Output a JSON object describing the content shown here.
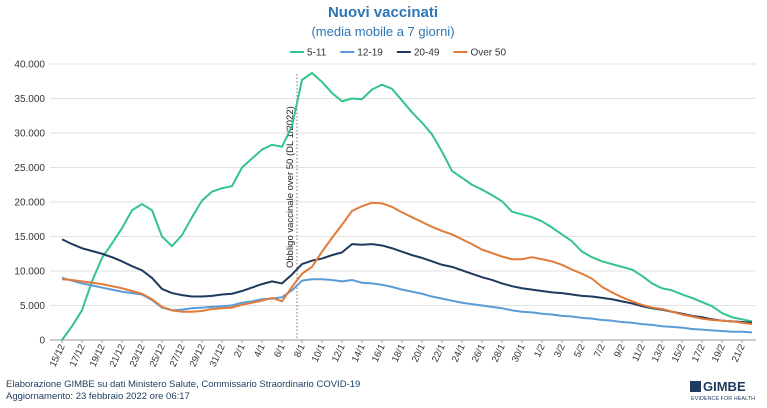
{
  "chart_data": {
    "type": "line",
    "title": "Nuovi vaccinati",
    "subtitle": "(media mobile a 7 giorni)",
    "categories": [
      "15/12",
      null,
      "17/12",
      null,
      "19/12",
      null,
      "21/12",
      null,
      "23/12",
      null,
      "25/12",
      null,
      "27/12",
      null,
      "29/12",
      null,
      "31/12",
      null,
      "2/1",
      null,
      "4/1",
      null,
      "6/1",
      null,
      "8/1",
      null,
      "10/1",
      null,
      "12/1",
      null,
      "14/1",
      null,
      "16/1",
      null,
      "18/1",
      null,
      "20/1",
      null,
      "22/1",
      null,
      "24/1",
      null,
      "26/1",
      null,
      "28/1",
      null,
      "30/1",
      null,
      "1/2",
      null,
      "3/2",
      null,
      "5/2",
      null,
      "7/2",
      null,
      "9/2",
      null,
      "11/2",
      null,
      "13/2",
      null,
      "15/2",
      null,
      "17/2",
      null,
      "19/2",
      null,
      "21/2",
      null
    ],
    "series": [
      {
        "name": "5-11",
        "color": "#33c48a",
        "values": [
          0,
          2000,
          4300,
          8500,
          11900,
          14000,
          16200,
          18800,
          19700,
          18800,
          15000,
          13600,
          15200,
          17800,
          20200,
          21500,
          22000,
          22300,
          25000,
          26300,
          27600,
          28300,
          28000,
          31000,
          37700,
          38700,
          37400,
          35800,
          34600,
          35000,
          34900,
          36300,
          37000,
          36400,
          34700,
          33000,
          31500,
          29800,
          27300,
          24500,
          23500,
          22500,
          21800,
          21000,
          20100,
          18600,
          18200,
          17800,
          17200,
          16300,
          15300,
          14300,
          12800,
          12000,
          11400,
          11000,
          10600,
          10200,
          9300,
          8200,
          7500,
          7200,
          6600,
          6100,
          5500,
          4900,
          3900,
          3300,
          3000,
          2700
        ]
      },
      {
        "name": "12-19",
        "color": "#5b9bd5",
        "values": [
          9000,
          8600,
          8200,
          7900,
          7600,
          7300,
          7000,
          6800,
          6600,
          5800,
          4700,
          4300,
          4400,
          4600,
          4700,
          4800,
          4900,
          5000,
          5400,
          5600,
          5900,
          6000,
          6200,
          7200,
          8600,
          8800,
          8800,
          8700,
          8500,
          8700,
          8300,
          8200,
          8000,
          7700,
          7300,
          7000,
          6700,
          6300,
          6000,
          5700,
          5400,
          5200,
          5000,
          4800,
          4600,
          4300,
          4100,
          4000,
          3800,
          3700,
          3500,
          3400,
          3200,
          3100,
          2900,
          2800,
          2600,
          2500,
          2300,
          2200,
          2000,
          1900,
          1800,
          1600,
          1500,
          1400,
          1300,
          1200,
          1200,
          1100
        ]
      },
      {
        "name": "20-49",
        "color": "#1f3a5f",
        "values": [
          14600,
          13900,
          13300,
          12900,
          12500,
          12000,
          11400,
          10700,
          10100,
          9000,
          7400,
          6800,
          6500,
          6300,
          6300,
          6400,
          6600,
          6700,
          7100,
          7600,
          8100,
          8500,
          8200,
          9500,
          11000,
          11500,
          11800,
          12300,
          12700,
          13900,
          13800,
          13900,
          13700,
          13300,
          12800,
          12300,
          11900,
          11400,
          10900,
          10600,
          10100,
          9600,
          9100,
          8700,
          8200,
          7800,
          7500,
          7300,
          7100,
          6900,
          6800,
          6600,
          6400,
          6300,
          6100,
          5900,
          5600,
          5300,
          4900,
          4600,
          4400,
          4100,
          3800,
          3500,
          3300,
          3000,
          2800,
          2700,
          2600,
          2500
        ]
      },
      {
        "name": "Over 50",
        "color": "#e07b39",
        "values": [
          8800,
          8700,
          8500,
          8300,
          8100,
          7800,
          7500,
          7100,
          6700,
          5900,
          4800,
          4300,
          4100,
          4100,
          4200,
          4500,
          4600,
          4700,
          5100,
          5400,
          5700,
          6100,
          5600,
          7700,
          9600,
          10600,
          12800,
          14800,
          16700,
          18700,
          19400,
          19900,
          19800,
          19300,
          18500,
          17800,
          17100,
          16400,
          15800,
          15300,
          14600,
          13900,
          13100,
          12600,
          12100,
          11700,
          11700,
          12000,
          11700,
          11400,
          10900,
          10200,
          9600,
          8900,
          7700,
          6900,
          6200,
          5600,
          5100,
          4700,
          4500,
          4100,
          3700,
          3400,
          3100,
          2900,
          2800,
          2700,
          2500,
          2300
        ]
      }
    ],
    "ylim": [
      0,
      40000
    ],
    "yticks": [
      0,
      {
        "value": 5000,
        "label": "5.000"
      },
      {
        "value": 10000,
        "label": "10.000"
      },
      {
        "value": 15000,
        "label": "15.000"
      },
      {
        "value": 20000,
        "label": "20.000"
      },
      {
        "value": 25000,
        "label": "25.000"
      },
      {
        "value": 30000,
        "label": "30.000"
      },
      {
        "value": 35000,
        "label": "35.000"
      },
      {
        "value": 40000,
        "label": "40.000"
      }
    ],
    "grid": true,
    "legend": "top",
    "annotation": "Obbligo vaccinale over 50 (DL 1/2022)"
  },
  "footer": {
    "source": "Elaborazione GIMBE su dati Ministero Salute, Commissario Straordinario COVID-19",
    "updated": "Aggiornamento: 23 febbraio 2022 ore 06:17",
    "logo": "GIMBE",
    "logo_tagline": "EVIDENCE FOR HEALTH"
  }
}
